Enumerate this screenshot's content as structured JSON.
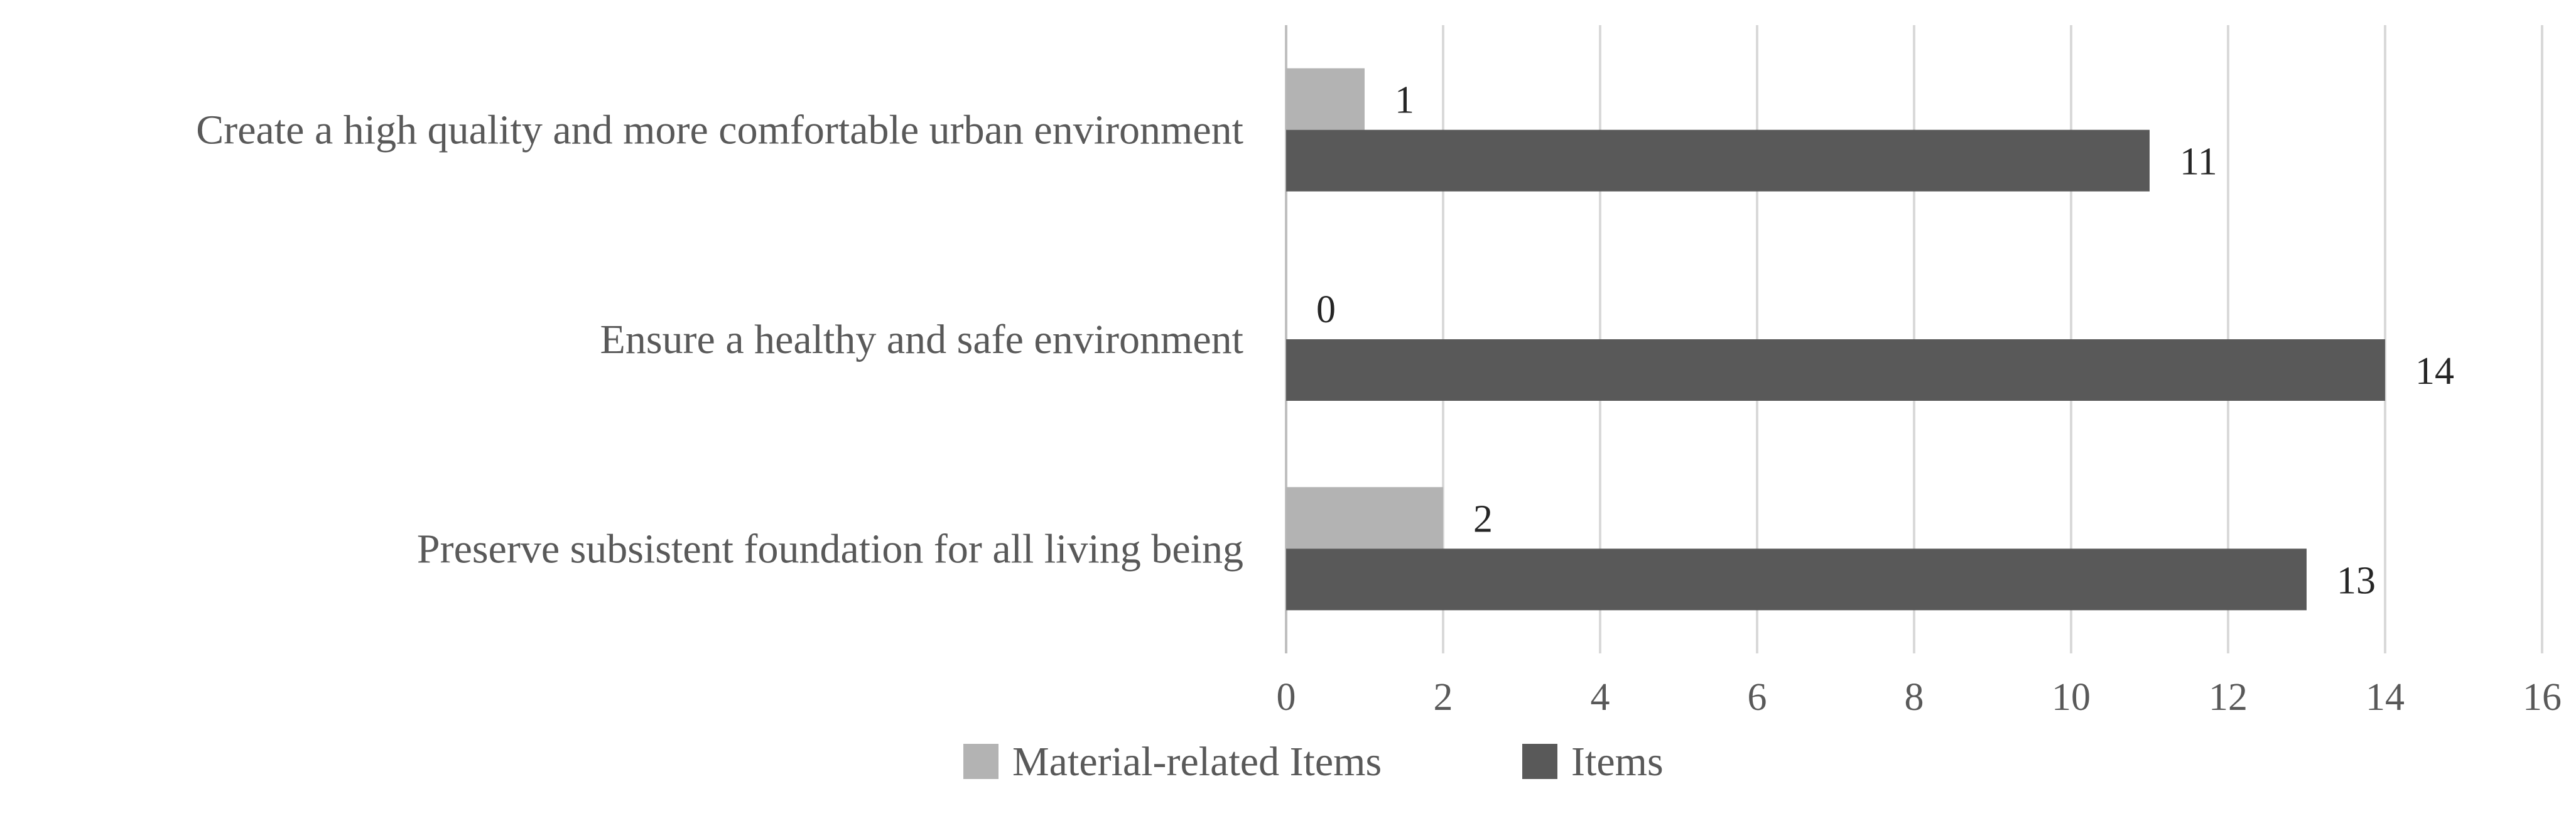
{
  "chart_data": {
    "type": "bar",
    "orientation": "horizontal",
    "categories": [
      "Create a high quality and more comfortable urban environment",
      "Ensure a healthy and safe environment",
      "Preserve subsistent foundation for all living being"
    ],
    "series": [
      {
        "name": "Material-related Items",
        "values": [
          1,
          0,
          2
        ],
        "color": "#b3b3b3"
      },
      {
        "name": "Items",
        "values": [
          11,
          14,
          13
        ],
        "color": "#595959"
      }
    ],
    "xlim": [
      0,
      16
    ],
    "xticks": [
      0,
      2,
      4,
      6,
      8,
      10,
      12,
      14,
      16
    ],
    "grid": true,
    "legend_position": "bottom"
  }
}
